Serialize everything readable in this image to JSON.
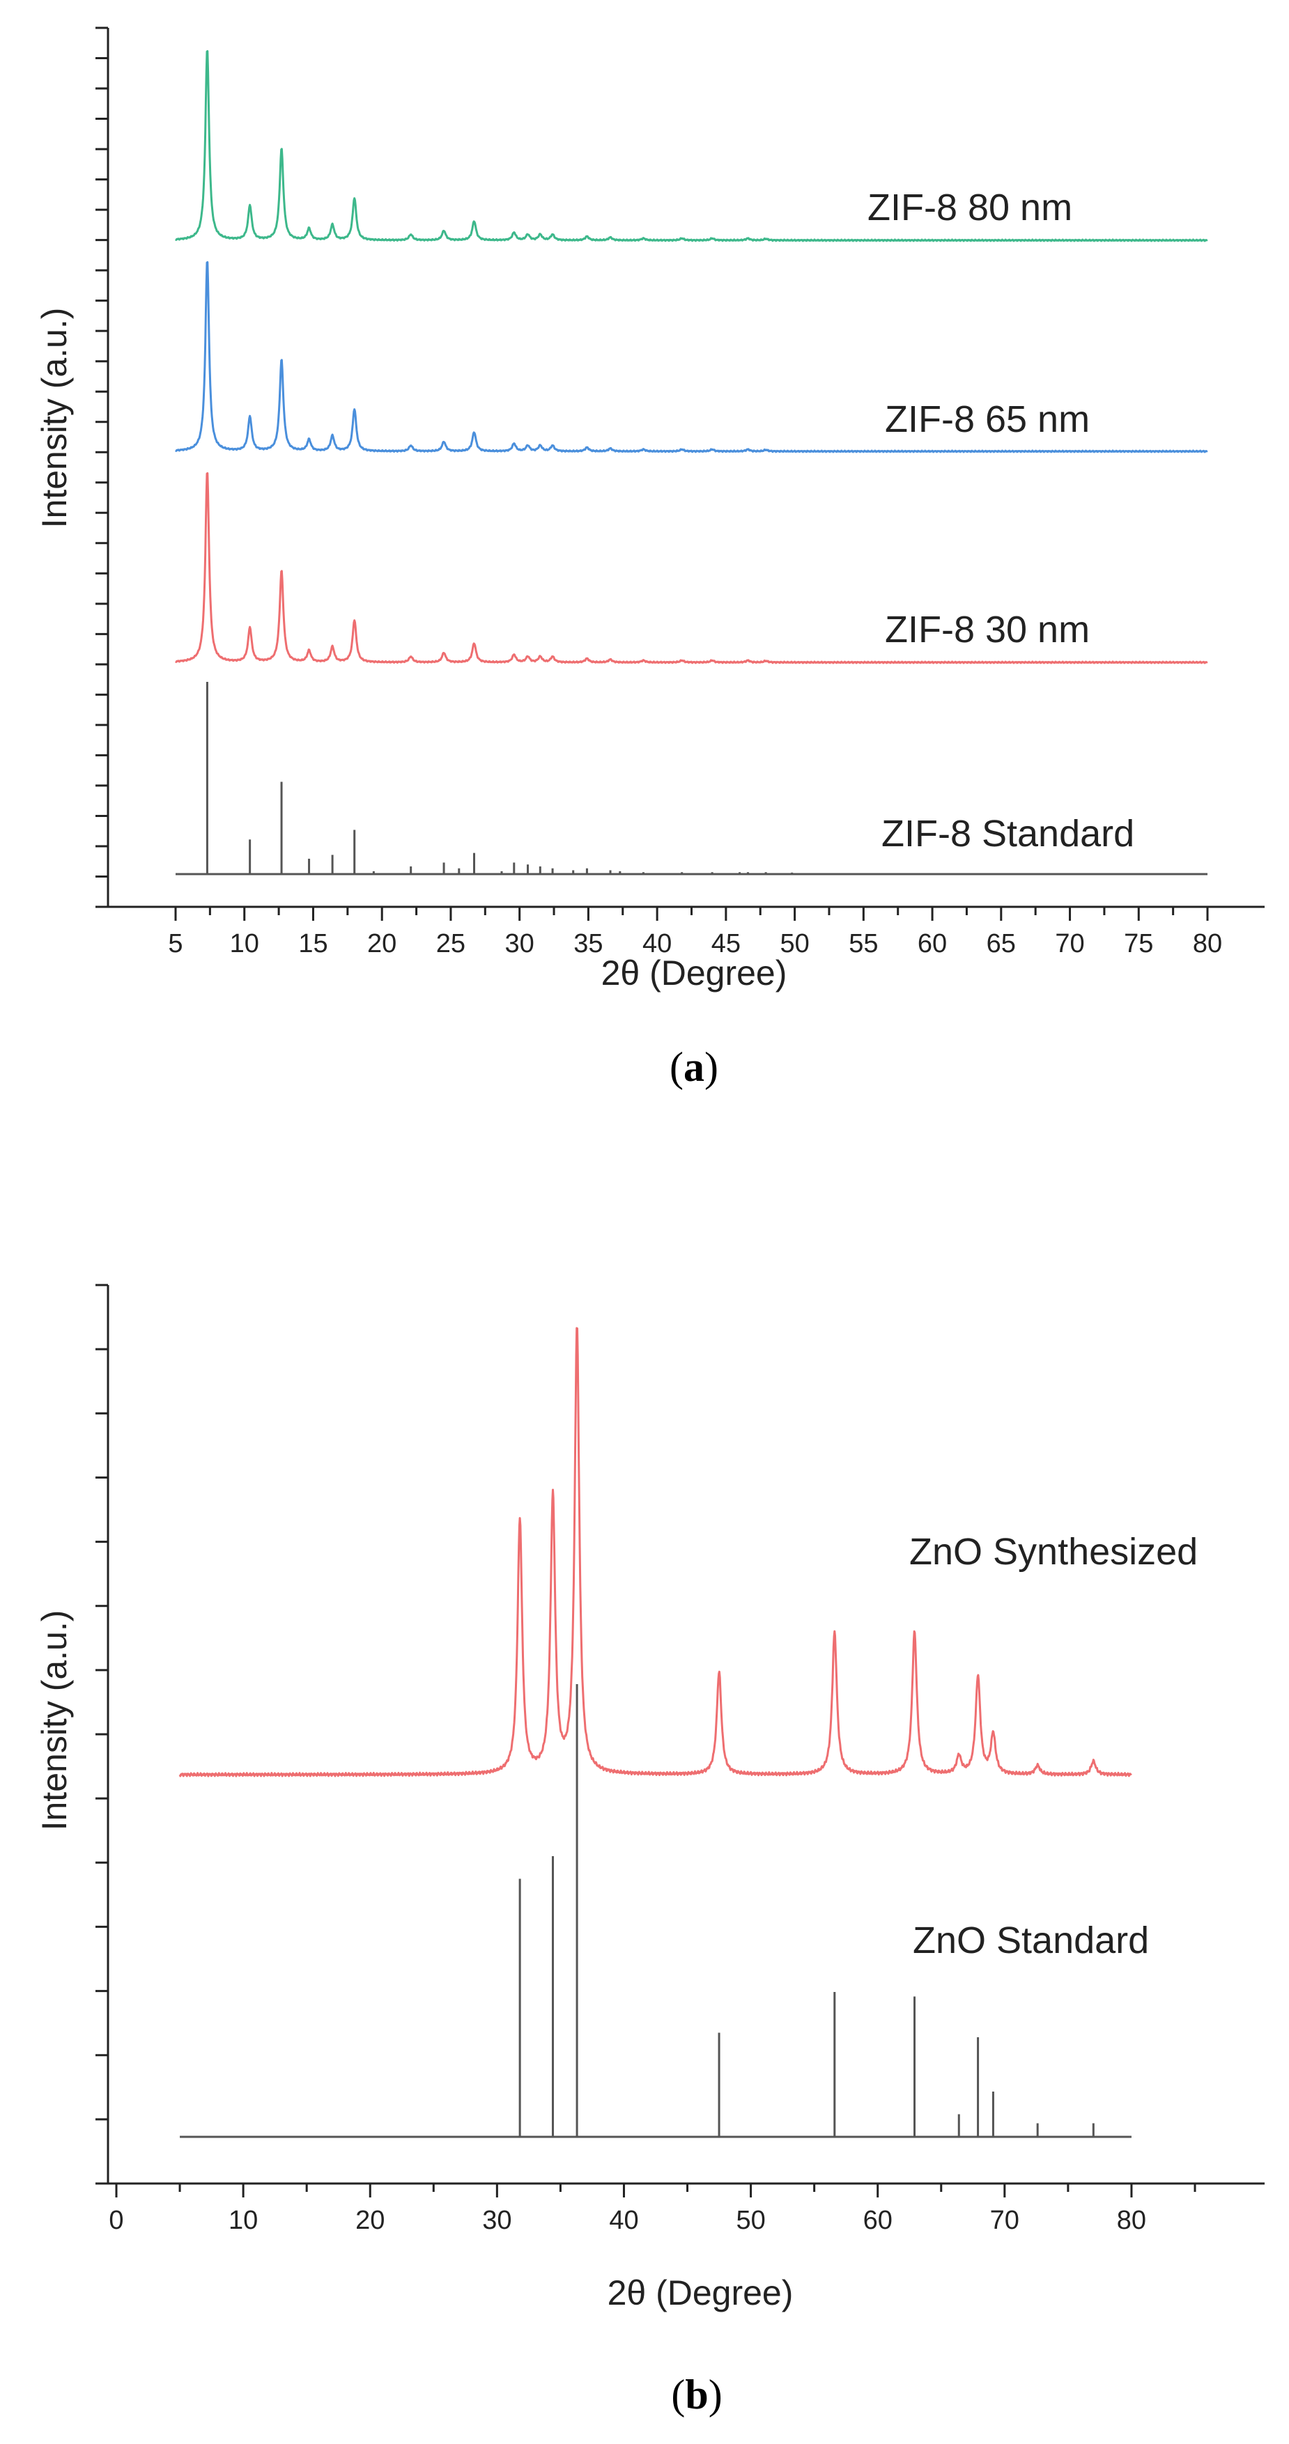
{
  "chart_data": [
    {
      "type": "line",
      "panel_label": "a",
      "xlabel": "2θ (Degree)",
      "ylabel": "Intensity (a.u.)",
      "xlim": [
        5,
        80
      ],
      "x_ticks": [
        5,
        10,
        15,
        20,
        25,
        30,
        35,
        40,
        45,
        50,
        55,
        60,
        65,
        70,
        75,
        80
      ],
      "y_ticks_labeled": false,
      "grid": false,
      "series": [
        {
          "name": "ZIF-8 80 nm",
          "color": "#3db88b",
          "style": "line",
          "peaks": [
            {
              "x": 7.3,
              "y": 100
            },
            {
              "x": 10.4,
              "y": 18
            },
            {
              "x": 12.7,
              "y": 48
            },
            {
              "x": 14.7,
              "y": 6
            },
            {
              "x": 16.4,
              "y": 8
            },
            {
              "x": 18.0,
              "y": 22
            },
            {
              "x": 22.1,
              "y": 3
            },
            {
              "x": 24.5,
              "y": 5
            },
            {
              "x": 26.7,
              "y": 10
            },
            {
              "x": 29.6,
              "y": 4
            },
            {
              "x": 30.6,
              "y": 3
            },
            {
              "x": 31.5,
              "y": 3
            },
            {
              "x": 32.4,
              "y": 3
            },
            {
              "x": 34.9,
              "y": 2
            },
            {
              "x": 36.6,
              "y": 1.5
            },
            {
              "x": 39.0,
              "y": 1
            },
            {
              "x": 41.8,
              "y": 1
            },
            {
              "x": 44.0,
              "y": 1
            },
            {
              "x": 46.6,
              "y": 1
            },
            {
              "x": 47.9,
              "y": 0.8
            }
          ]
        },
        {
          "name": "ZIF-8 65 nm",
          "color": "#4a8fdc",
          "style": "line",
          "peaks": [
            {
              "x": 7.3,
              "y": 100
            },
            {
              "x": 10.4,
              "y": 18
            },
            {
              "x": 12.7,
              "y": 48
            },
            {
              "x": 14.7,
              "y": 6
            },
            {
              "x": 16.4,
              "y": 8
            },
            {
              "x": 18.0,
              "y": 22
            },
            {
              "x": 22.1,
              "y": 3
            },
            {
              "x": 24.5,
              "y": 5
            },
            {
              "x": 26.7,
              "y": 10
            },
            {
              "x": 29.6,
              "y": 4
            },
            {
              "x": 30.6,
              "y": 3
            },
            {
              "x": 31.5,
              "y": 3
            },
            {
              "x": 32.4,
              "y": 3
            },
            {
              "x": 34.9,
              "y": 2
            },
            {
              "x": 36.6,
              "y": 1.5
            },
            {
              "x": 39.0,
              "y": 1
            },
            {
              "x": 41.8,
              "y": 1
            },
            {
              "x": 44.0,
              "y": 1
            },
            {
              "x": 46.6,
              "y": 1
            },
            {
              "x": 47.9,
              "y": 0.8
            }
          ]
        },
        {
          "name": "ZIF-8 30 nm",
          "color": "#ee6e70",
          "style": "line",
          "peaks": [
            {
              "x": 7.3,
              "y": 100
            },
            {
              "x": 10.4,
              "y": 18
            },
            {
              "x": 12.7,
              "y": 48
            },
            {
              "x": 14.7,
              "y": 6
            },
            {
              "x": 16.4,
              "y": 8
            },
            {
              "x": 18.0,
              "y": 22
            },
            {
              "x": 22.1,
              "y": 3
            },
            {
              "x": 24.5,
              "y": 5
            },
            {
              "x": 26.7,
              "y": 10
            },
            {
              "x": 29.6,
              "y": 4
            },
            {
              "x": 30.6,
              "y": 3
            },
            {
              "x": 31.5,
              "y": 3
            },
            {
              "x": 32.4,
              "y": 3
            },
            {
              "x": 34.9,
              "y": 2
            },
            {
              "x": 36.6,
              "y": 1.5
            },
            {
              "x": 39.0,
              "y": 1
            },
            {
              "x": 41.8,
              "y": 1
            },
            {
              "x": 44.0,
              "y": 1
            },
            {
              "x": 46.6,
              "y": 1
            },
            {
              "x": 47.9,
              "y": 0.8
            }
          ]
        },
        {
          "name": "ZIF-8 Standard",
          "color": "#555555",
          "style": "stick",
          "peaks": [
            {
              "x": 7.3,
              "y": 100
            },
            {
              "x": 10.4,
              "y": 18
            },
            {
              "x": 12.7,
              "y": 48
            },
            {
              "x": 14.7,
              "y": 8
            },
            {
              "x": 16.4,
              "y": 10
            },
            {
              "x": 18.0,
              "y": 23
            },
            {
              "x": 19.4,
              "y": 1.5
            },
            {
              "x": 22.1,
              "y": 4
            },
            {
              "x": 24.5,
              "y": 6
            },
            {
              "x": 25.6,
              "y": 3
            },
            {
              "x": 26.7,
              "y": 11
            },
            {
              "x": 28.7,
              "y": 1.5
            },
            {
              "x": 29.6,
              "y": 6
            },
            {
              "x": 30.6,
              "y": 5
            },
            {
              "x": 31.5,
              "y": 4
            },
            {
              "x": 32.4,
              "y": 3
            },
            {
              "x": 33.9,
              "y": 2
            },
            {
              "x": 34.9,
              "y": 3
            },
            {
              "x": 36.6,
              "y": 2
            },
            {
              "x": 37.3,
              "y": 1.5
            },
            {
              "x": 39.0,
              "y": 1
            },
            {
              "x": 41.8,
              "y": 1
            },
            {
              "x": 44.0,
              "y": 1
            },
            {
              "x": 46.0,
              "y": 1
            },
            {
              "x": 46.6,
              "y": 1
            },
            {
              "x": 47.9,
              "y": 1
            },
            {
              "x": 49.8,
              "y": 0.8
            }
          ]
        }
      ]
    },
    {
      "type": "line",
      "panel_label": "b",
      "xlabel": "2θ (Degree)",
      "ylabel": "Intensity (a.u.)",
      "xlim": [
        0,
        85
      ],
      "x_ticks": [
        0,
        10,
        20,
        30,
        40,
        50,
        60,
        70,
        80
      ],
      "y_ticks_labeled": false,
      "grid": false,
      "series": [
        {
          "name": "ZnO Synthesized",
          "color": "#ee6e70",
          "style": "line",
          "x_range": [
            5,
            80
          ],
          "peaks": [
            {
              "x": 31.8,
              "y": 57
            },
            {
              "x": 34.4,
              "y": 62
            },
            {
              "x": 36.3,
              "y": 100
            },
            {
              "x": 47.5,
              "y": 23
            },
            {
              "x": 56.6,
              "y": 32
            },
            {
              "x": 62.9,
              "y": 32
            },
            {
              "x": 66.4,
              "y": 4
            },
            {
              "x": 67.9,
              "y": 22
            },
            {
              "x": 69.1,
              "y": 9
            },
            {
              "x": 72.6,
              "y": 2
            },
            {
              "x": 77.0,
              "y": 3
            }
          ]
        },
        {
          "name": "ZnO Standard",
          "color": "#555555",
          "style": "stick",
          "x_range": [
            5,
            80
          ],
          "peaks": [
            {
              "x": 31.8,
              "y": 57
            },
            {
              "x": 34.4,
              "y": 62
            },
            {
              "x": 36.3,
              "y": 100
            },
            {
              "x": 47.5,
              "y": 23
            },
            {
              "x": 56.6,
              "y": 32
            },
            {
              "x": 62.9,
              "y": 31
            },
            {
              "x": 66.4,
              "y": 5
            },
            {
              "x": 67.9,
              "y": 22
            },
            {
              "x": 69.1,
              "y": 10
            },
            {
              "x": 72.6,
              "y": 3
            },
            {
              "x": 77.0,
              "y": 3
            }
          ]
        }
      ]
    }
  ]
}
